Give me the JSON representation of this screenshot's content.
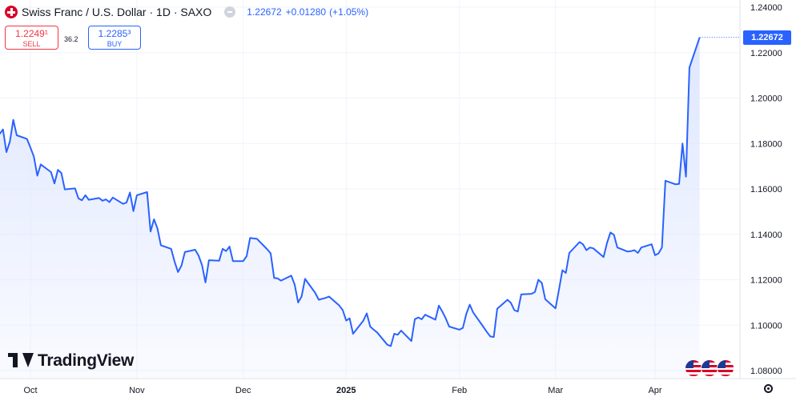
{
  "header": {
    "title": "Swiss Franc / U.S. Dollar · 1D · SAXO",
    "last": "1.22672",
    "change": "+0.01280",
    "change_pct": "(+1.05%)",
    "accent_color": "#2962ff"
  },
  "trade": {
    "sell_price": "1.2249¹",
    "sell_label": "SELL",
    "spread": "36.2",
    "buy_price": "1.2285³",
    "buy_label": "BUY"
  },
  "price_tag": "1.22672",
  "logo_text": "TradingView",
  "icons": [
    "swiss-franc-symbol-icon",
    "eye-off-icon",
    "tradingview-logo-icon",
    "us-flag-icon",
    "settings-icon"
  ],
  "chart_data": {
    "type": "area",
    "ylim": [
      1.07,
      1.24
    ],
    "line_color": "#2962ff",
    "fill_color": "#dde5ff",
    "last_value": 1.22672,
    "y_ticks": [
      "1.24000",
      "1.22000",
      "1.20000",
      "1.18000",
      "1.16000",
      "1.14000",
      "1.12000",
      "1.10000",
      "1.08000"
    ],
    "y_tick_values": [
      1.24,
      1.22,
      1.2,
      1.18,
      1.16,
      1.14,
      1.12,
      1.1,
      1.08
    ],
    "x_ticks": [
      {
        "label": "Oct",
        "date": "2024-10-01",
        "bold": false
      },
      {
        "label": "Nov",
        "date": "2024-11-01",
        "bold": false
      },
      {
        "label": "Dec",
        "date": "2024-12-02",
        "bold": false
      },
      {
        "label": "2025",
        "date": "2025-01-01",
        "bold": true
      },
      {
        "label": "Feb",
        "date": "2025-02-03",
        "bold": false
      },
      {
        "label": "Mar",
        "date": "2025-03-03",
        "bold": false
      },
      {
        "label": "Apr",
        "date": "2025-04-01",
        "bold": false
      }
    ],
    "x_range": [
      "2024-09-20",
      "2025-04-23"
    ],
    "series": [
      {
        "values": [
          [
            "2024-09-20",
            1.1786
          ],
          [
            "2024-09-21",
            1.182
          ],
          [
            "2024-09-23",
            1.1862
          ],
          [
            "2024-09-24",
            1.1762
          ],
          [
            "2024-09-25",
            1.1808
          ],
          [
            "2024-09-26",
            1.1904
          ],
          [
            "2024-09-27",
            1.1836
          ],
          [
            "2024-09-30",
            1.182
          ],
          [
            "2024-10-01",
            1.1782
          ],
          [
            "2024-10-02",
            1.1742
          ],
          [
            "2024-10-03",
            1.1658
          ],
          [
            "2024-10-04",
            1.1708
          ],
          [
            "2024-10-07",
            1.1674
          ],
          [
            "2024-10-08",
            1.1624
          ],
          [
            "2024-10-09",
            1.1684
          ],
          [
            "2024-10-10",
            1.167
          ],
          [
            "2024-10-11",
            1.1598
          ],
          [
            "2024-10-14",
            1.1602
          ],
          [
            "2024-10-15",
            1.1558
          ],
          [
            "2024-10-16",
            1.155
          ],
          [
            "2024-10-17",
            1.1572
          ],
          [
            "2024-10-18",
            1.1552
          ],
          [
            "2024-10-21",
            1.156
          ],
          [
            "2024-10-22",
            1.1548
          ],
          [
            "2024-10-23",
            1.1554
          ],
          [
            "2024-10-24",
            1.1542
          ],
          [
            "2024-10-25",
            1.1562
          ],
          [
            "2024-10-28",
            1.1534
          ],
          [
            "2024-10-29",
            1.154
          ],
          [
            "2024-10-30",
            1.1584
          ],
          [
            "2024-10-31",
            1.1502
          ],
          [
            "2024-11-01",
            1.1572
          ],
          [
            "2024-11-04",
            1.1586
          ],
          [
            "2024-11-05",
            1.1412
          ],
          [
            "2024-11-06",
            1.1466
          ],
          [
            "2024-11-07",
            1.1426
          ],
          [
            "2024-11-08",
            1.1352
          ],
          [
            "2024-11-11",
            1.1336
          ],
          [
            "2024-11-12",
            1.128
          ],
          [
            "2024-11-13",
            1.1234
          ],
          [
            "2024-11-14",
            1.1262
          ],
          [
            "2024-11-15",
            1.1322
          ],
          [
            "2024-11-18",
            1.1332
          ],
          [
            "2024-11-19",
            1.1306
          ],
          [
            "2024-11-20",
            1.1264
          ],
          [
            "2024-11-21",
            1.1188
          ],
          [
            "2024-11-22",
            1.1286
          ],
          [
            "2024-11-25",
            1.1284
          ],
          [
            "2024-11-26",
            1.1336
          ],
          [
            "2024-11-27",
            1.1326
          ],
          [
            "2024-11-28",
            1.1346
          ],
          [
            "2024-11-29",
            1.1282
          ],
          [
            "2024-12-02",
            1.1282
          ],
          [
            "2024-12-03",
            1.1304
          ],
          [
            "2024-12-04",
            1.1384
          ],
          [
            "2024-12-05",
            1.1382
          ],
          [
            "2024-12-06",
            1.138
          ],
          [
            "2024-12-09",
            1.1334
          ],
          [
            "2024-12-10",
            1.1316
          ],
          [
            "2024-12-11",
            1.1208
          ],
          [
            "2024-12-12",
            1.1206
          ],
          [
            "2024-12-13",
            1.1196
          ],
          [
            "2024-12-16",
            1.1218
          ],
          [
            "2024-12-17",
            1.1178
          ],
          [
            "2024-12-18",
            1.11
          ],
          [
            "2024-12-19",
            1.1126
          ],
          [
            "2024-12-20",
            1.1204
          ],
          [
            "2024-12-23",
            1.1142
          ],
          [
            "2024-12-24",
            1.1112
          ],
          [
            "2024-12-26",
            1.112
          ],
          [
            "2024-12-27",
            1.1126
          ],
          [
            "2024-12-30",
            1.1086
          ],
          [
            "2024-12-31",
            1.1066
          ],
          [
            "2025-01-01",
            1.102
          ],
          [
            "2025-01-02",
            1.103
          ],
          [
            "2025-01-03",
            1.0962
          ],
          [
            "2025-01-06",
            1.102
          ],
          [
            "2025-01-07",
            1.1052
          ],
          [
            "2025-01-08",
            1.0994
          ],
          [
            "2025-01-09",
            1.098
          ],
          [
            "2025-01-10",
            1.0968
          ],
          [
            "2025-01-13",
            1.0914
          ],
          [
            "2025-01-14",
            1.0908
          ],
          [
            "2025-01-15",
            1.0962
          ],
          [
            "2025-01-16",
            1.0958
          ],
          [
            "2025-01-17",
            1.0976
          ],
          [
            "2025-01-20",
            1.093
          ],
          [
            "2025-01-21",
            1.1026
          ],
          [
            "2025-01-22",
            1.1034
          ],
          [
            "2025-01-23",
            1.1026
          ],
          [
            "2025-01-24",
            1.1046
          ],
          [
            "2025-01-27",
            1.1024
          ],
          [
            "2025-01-28",
            1.1086
          ],
          [
            "2025-01-29",
            1.106
          ],
          [
            "2025-01-30",
            1.103
          ],
          [
            "2025-01-31",
            1.0994
          ],
          [
            "2025-02-03",
            1.098
          ],
          [
            "2025-02-04",
            1.0988
          ],
          [
            "2025-02-05",
            1.105
          ],
          [
            "2025-02-06",
            1.109
          ],
          [
            "2025-02-07",
            1.1056
          ],
          [
            "2025-02-10",
            1.0992
          ],
          [
            "2025-02-11",
            1.097
          ],
          [
            "2025-02-12",
            1.095
          ],
          [
            "2025-02-13",
            1.0948
          ],
          [
            "2025-02-14",
            1.1072
          ],
          [
            "2025-02-17",
            1.1112
          ],
          [
            "2025-02-18",
            1.1098
          ],
          [
            "2025-02-19",
            1.1066
          ],
          [
            "2025-02-20",
            1.106
          ],
          [
            "2025-02-21",
            1.1136
          ],
          [
            "2025-02-24",
            1.1138
          ],
          [
            "2025-02-25",
            1.1146
          ],
          [
            "2025-02-26",
            1.12
          ],
          [
            "2025-02-27",
            1.1186
          ],
          [
            "2025-02-28",
            1.1114
          ],
          [
            "2025-03-03",
            1.1074
          ],
          [
            "2025-03-04",
            1.1156
          ],
          [
            "2025-03-05",
            1.1242
          ],
          [
            "2025-03-06",
            1.123
          ],
          [
            "2025-03-07",
            1.1318
          ],
          [
            "2025-03-10",
            1.1366
          ],
          [
            "2025-03-11",
            1.1356
          ],
          [
            "2025-03-12",
            1.133
          ],
          [
            "2025-03-13",
            1.1342
          ],
          [
            "2025-03-14",
            1.1338
          ],
          [
            "2025-03-17",
            1.13
          ],
          [
            "2025-03-18",
            1.1362
          ],
          [
            "2025-03-19",
            1.1408
          ],
          [
            "2025-03-20",
            1.1398
          ],
          [
            "2025-03-21",
            1.1342
          ],
          [
            "2025-03-24",
            1.1324
          ],
          [
            "2025-03-25",
            1.1326
          ],
          [
            "2025-03-26",
            1.133
          ],
          [
            "2025-03-27",
            1.1318
          ],
          [
            "2025-03-28",
            1.1342
          ],
          [
            "2025-03-31",
            1.1356
          ],
          [
            "2025-04-01",
            1.1308
          ],
          [
            "2025-04-02",
            1.1316
          ],
          [
            "2025-04-03",
            1.1342
          ],
          [
            "2025-04-04",
            1.1636
          ],
          [
            "2025-04-07",
            1.162
          ],
          [
            "2025-04-08",
            1.1622
          ],
          [
            "2025-04-09",
            1.18
          ],
          [
            "2025-04-10",
            1.1654
          ],
          [
            "2025-04-11",
            1.2134
          ],
          [
            "2025-04-14",
            1.2267
          ]
        ]
      }
    ]
  }
}
